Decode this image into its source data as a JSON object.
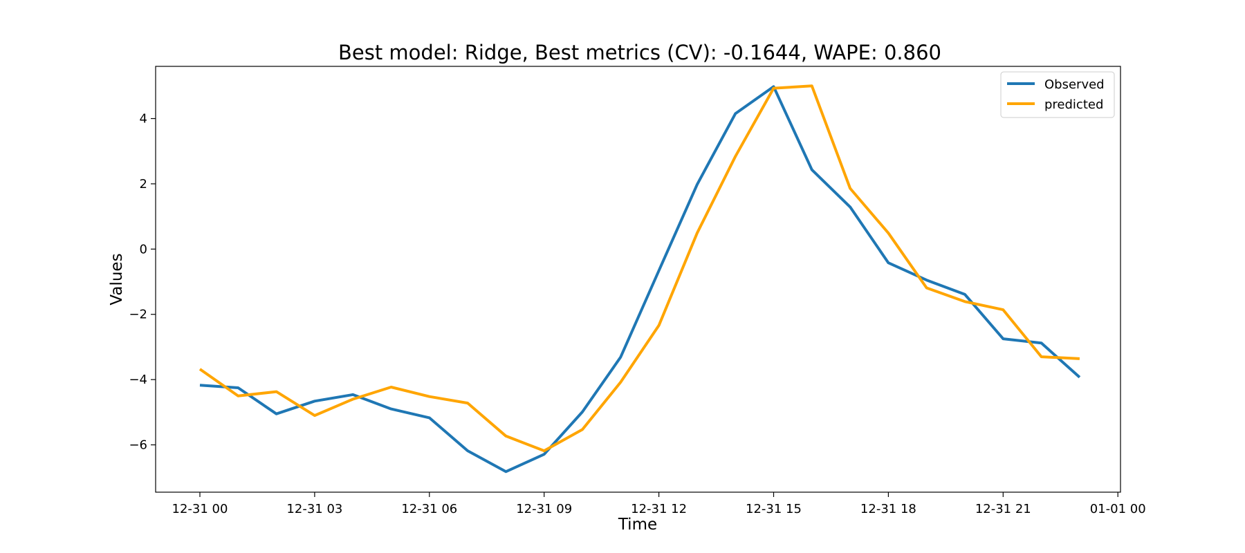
{
  "chart_data": {
    "type": "line",
    "title": "Best model: Ridge, Best metrics (CV): -0.1644, WAPE: 0.860",
    "xlabel": "Time",
    "ylabel": "Values",
    "x": [
      "12-31 00",
      "12-31 01",
      "12-31 02",
      "12-31 03",
      "12-31 04",
      "12-31 05",
      "12-31 06",
      "12-31 07",
      "12-31 08",
      "12-31 09",
      "12-31 10",
      "12-31 11",
      "12-31 12",
      "12-31 13",
      "12-31 14",
      "12-31 15",
      "12-31 16",
      "12-31 17",
      "12-31 18",
      "12-31 19",
      "12-31 20",
      "12-31 21",
      "12-31 22",
      "12-31 23"
    ],
    "xticks": [
      "12-31 00",
      "12-31 03",
      "12-31 06",
      "12-31 09",
      "12-31 12",
      "12-31 15",
      "12-31 18",
      "12-31 21",
      "01-01 00"
    ],
    "yticks": [
      "−6",
      "−4",
      "−2",
      "0",
      "2",
      "4"
    ],
    "ylim": [
      -7.45,
      5.6
    ],
    "grid": false,
    "legend_position": "upper right",
    "series": [
      {
        "name": "Observed",
        "color": "#1f77b4",
        "values": [
          -4.17,
          -4.25,
          -5.05,
          -4.66,
          -4.46,
          -4.9,
          -5.17,
          -6.18,
          -6.82,
          -6.29,
          -4.99,
          -3.31,
          -0.66,
          1.98,
          4.15,
          4.98,
          2.43,
          1.29,
          -0.42,
          -0.95,
          -1.39,
          -2.75,
          -2.88,
          -3.93
        ]
      },
      {
        "name": "predicted",
        "color": "#ffa500",
        "values": [
          -3.68,
          -4.5,
          -4.37,
          -5.1,
          -4.6,
          -4.23,
          -4.52,
          -4.72,
          -5.73,
          -6.18,
          -5.53,
          -4.08,
          -2.34,
          0.49,
          2.84,
          4.93,
          5.0,
          1.86,
          0.49,
          -1.19,
          -1.61,
          -1.86,
          -3.3,
          -3.36
        ]
      }
    ]
  }
}
